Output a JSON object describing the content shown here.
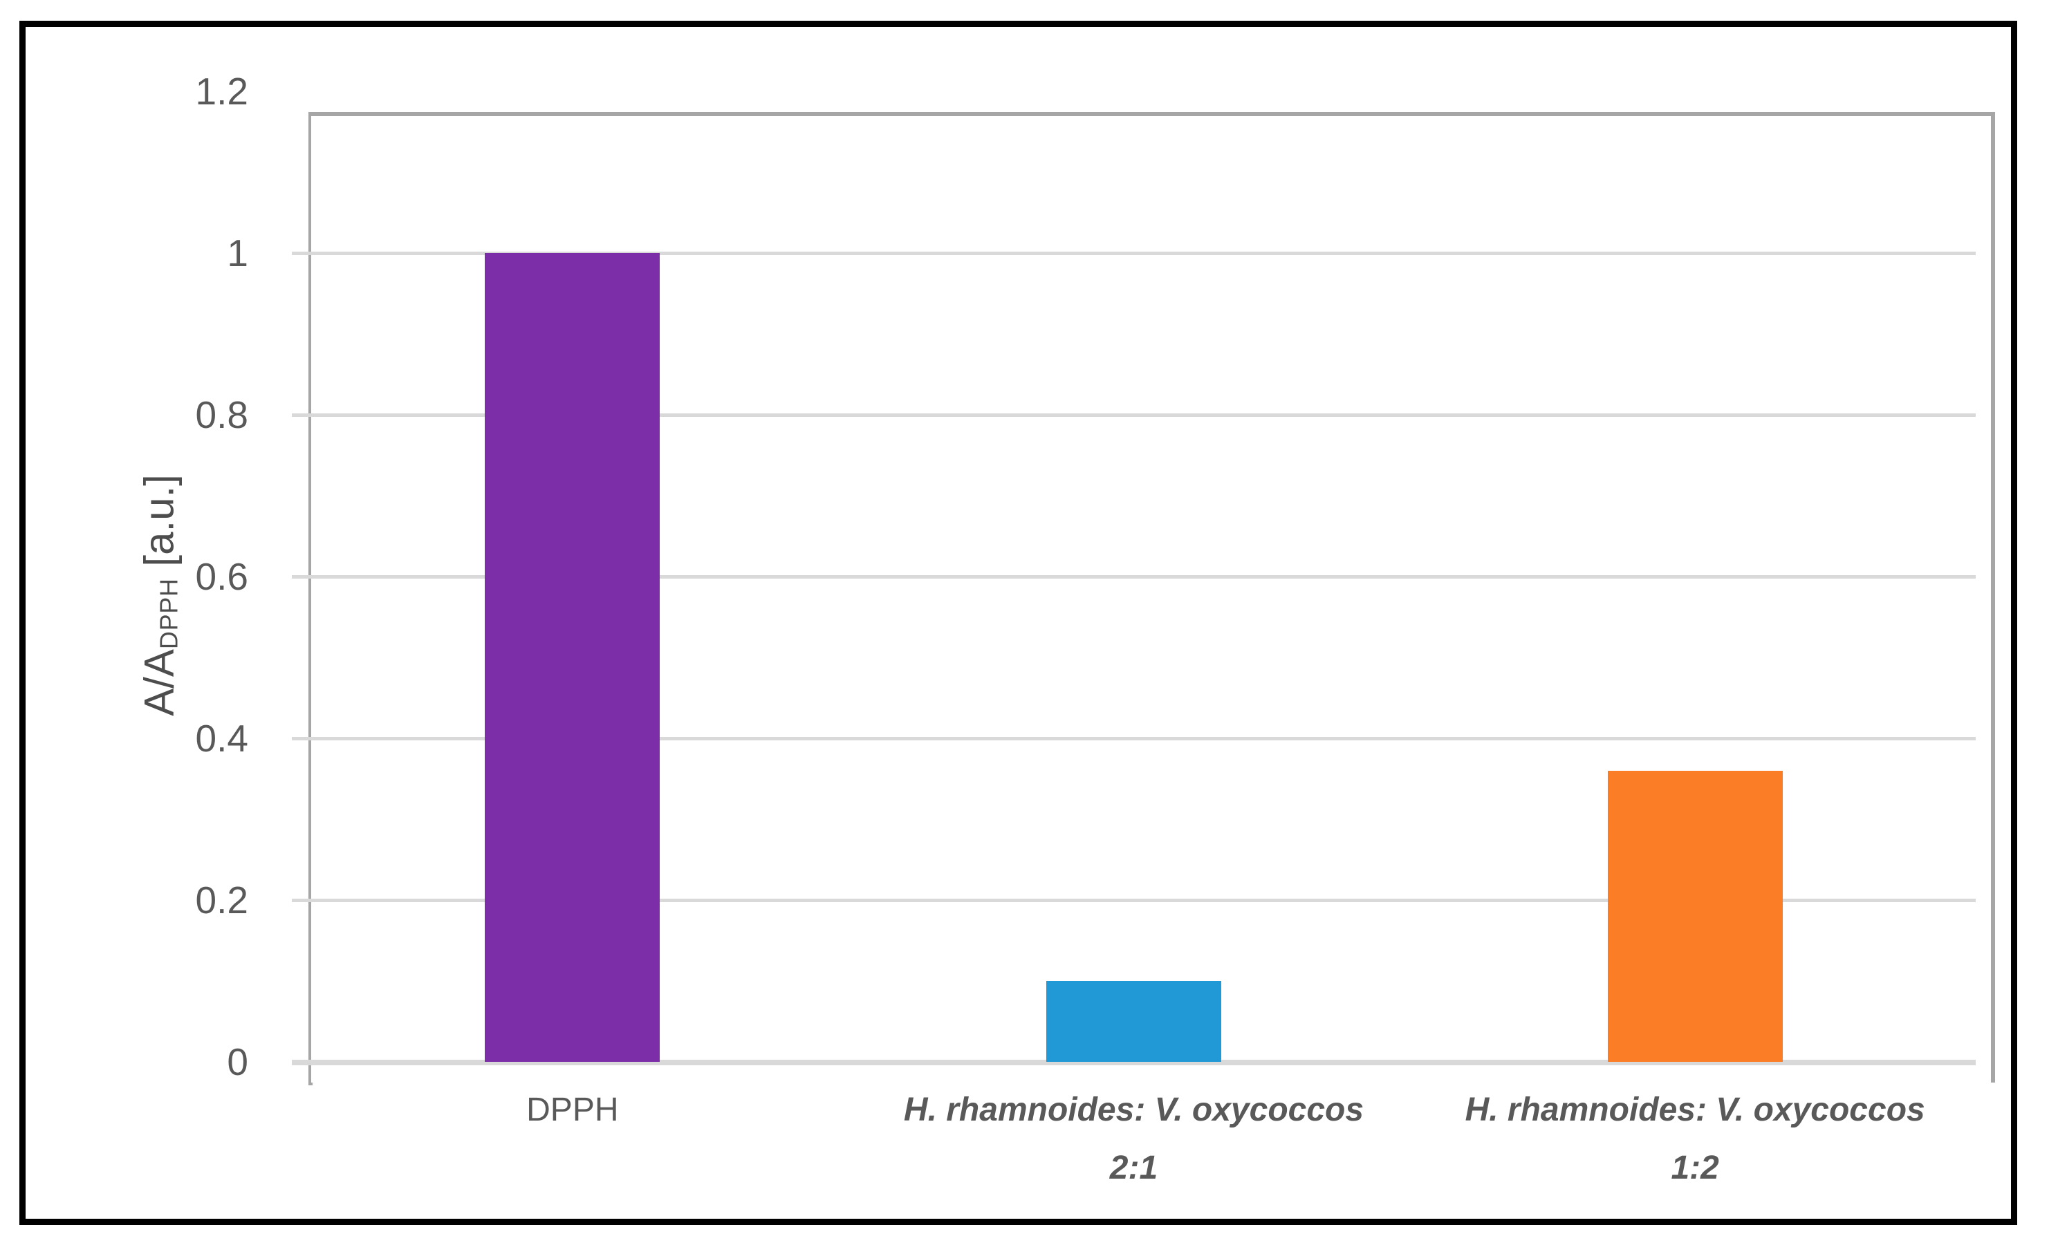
{
  "chart_data": {
    "type": "bar",
    "title": "",
    "categories": [
      {
        "lines": [
          "DPPH"
        ],
        "style": "normal"
      },
      {
        "lines": [
          "H. rhamnoides: V. oxycoccos",
          "2:1"
        ],
        "style": "bold-italic"
      },
      {
        "lines": [
          "H. rhamnoides: V. oxycoccos",
          "1:2"
        ],
        "style": "bold-italic"
      }
    ],
    "values": [
      1.0,
      0.1,
      0.36
    ],
    "bar_colors": [
      "#7c2da8",
      "#2099d6",
      "#fb7d26"
    ],
    "xlabel": "",
    "ylabel_main": "A/A",
    "ylabel_subscript": "DPPH",
    "ylabel_unit": " [a.u.]",
    "ylim": [
      0,
      1.2
    ],
    "ytick_step": 0.2,
    "ytick_labels": [
      "0",
      "0.2",
      "0.4",
      "0.6",
      "0.8",
      "1",
      "1.2"
    ],
    "grid": true,
    "legend": false,
    "layout": {
      "gridline_color": "#d9d9d9",
      "axis_line_color": "#a6a6a6",
      "tick_text_color": "#595959",
      "frame_color": "#000000"
    }
  }
}
